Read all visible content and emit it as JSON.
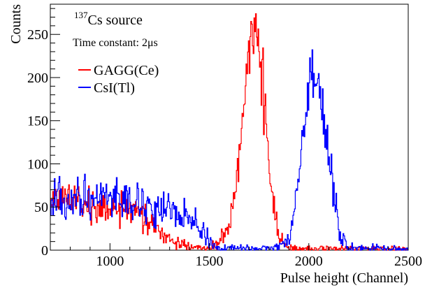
{
  "chart_data": {
    "type": "line",
    "style": "histogram-step",
    "xlabel": "Pulse height (Channel)",
    "ylabel": "Counts",
    "xlim": [
      700,
      2500
    ],
    "ylim": [
      0,
      285
    ],
    "x_ticks": [
      1000,
      1500,
      2000,
      2500
    ],
    "y_ticks": [
      0,
      50,
      100,
      150,
      200,
      250
    ],
    "grid": false,
    "legend_position": "top-left",
    "annotations": {
      "source_sup": "137",
      "source_text": "Cs source",
      "time_constant_text": "Time constant: 2μs"
    },
    "series": [
      {
        "name": "GAGG(Ce)",
        "color": "#ff0000",
        "x": [
          700,
          800,
          900,
          1000,
          1100,
          1200,
          1250,
          1300,
          1400,
          1500,
          1600,
          1650,
          1700,
          1725,
          1735,
          1750,
          1800,
          1850,
          1900,
          2000,
          2100,
          2500
        ],
        "y": [
          62,
          60,
          53,
          50,
          45,
          32,
          20,
          10,
          3,
          2,
          20,
          110,
          240,
          262,
          268,
          250,
          100,
          15,
          2,
          2,
          2,
          1
        ]
      },
      {
        "name": "CsI(Tl)",
        "color": "#0000ff",
        "x": [
          700,
          800,
          900,
          1000,
          1100,
          1200,
          1300,
          1400,
          1450,
          1500,
          1550,
          1600,
          1700,
          1800,
          1900,
          1950,
          2000,
          2030,
          2050,
          2100,
          2150,
          2200,
          2500
        ],
        "y": [
          65,
          62,
          60,
          58,
          55,
          50,
          45,
          38,
          25,
          10,
          3,
          2,
          2,
          2,
          10,
          80,
          175,
          200,
          190,
          110,
          25,
          3,
          1
        ]
      }
    ]
  }
}
